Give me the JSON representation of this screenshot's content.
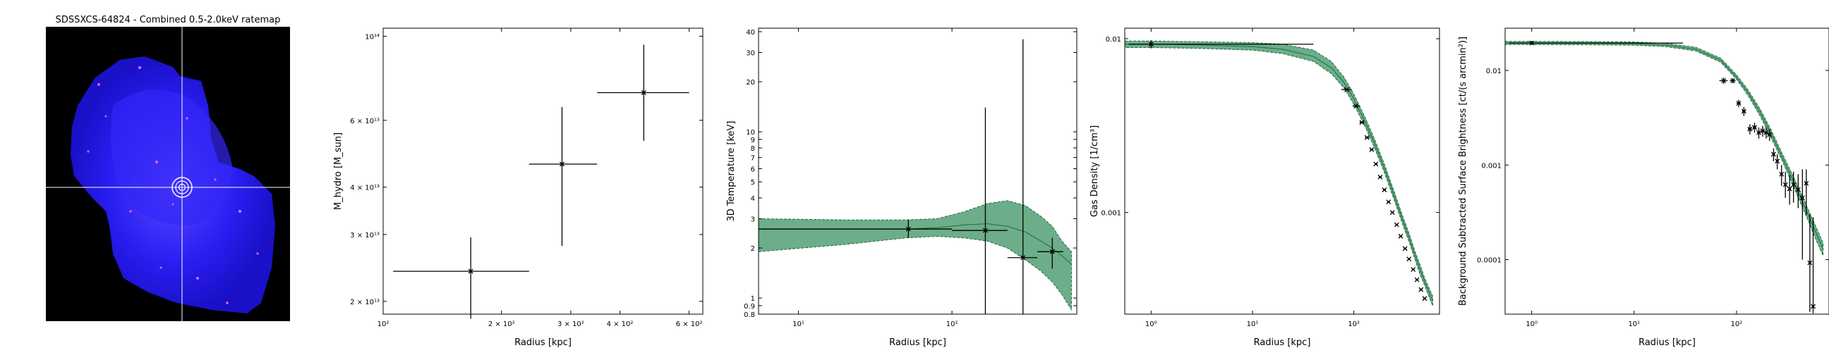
{
  "figure": {
    "image_panel": {
      "title": "SDSSXCS-64824 - Combined 0.5-2.0keV ratemap",
      "colors": {
        "background": "#000000",
        "emission": "#2a1ef2",
        "hot": "#c860f0",
        "crosshair": "#ffffff"
      }
    },
    "colors": {
      "band_fill": "#2e8b57",
      "band_edge": "#1f6b3f",
      "errorbar": "#000000"
    }
  },
  "chart_data": [
    {
      "type": "scatter",
      "title": "",
      "xlabel": "Radius [kpc]",
      "ylabel": "M_hydro [M_sun]",
      "xscale": "log",
      "yscale": "log",
      "xlim": [
        100,
        650
      ],
      "ylim": [
        18500000000000.0,
        105000000000000.0
      ],
      "xticks": [
        {
          "v": 100,
          "label": "10²"
        },
        {
          "v": 200,
          "label": "2 × 10²"
        },
        {
          "v": 300,
          "label": "3 × 10²"
        },
        {
          "v": 400,
          "label": "4 × 10²"
        },
        {
          "v": 600,
          "label": "6 × 10²"
        }
      ],
      "yticks": [
        {
          "v": 20000000000000.0,
          "label": "2 × 10¹³"
        },
        {
          "v": 30000000000000.0,
          "label": "3 × 10¹³"
        },
        {
          "v": 40000000000000.0,
          "label": "4 × 10¹³"
        },
        {
          "v": 60000000000000.0,
          "label": "6 × 10¹³"
        },
        {
          "v": 100000000000000.0,
          "label": "10¹⁴"
        }
      ],
      "points": [
        {
          "x": 167,
          "xlo": 106,
          "xhi": 235,
          "y": 24000000000000.0,
          "ylo": 18000000000000.0,
          "yhi": 29500000000000.0
        },
        {
          "x": 285,
          "xlo": 235,
          "xhi": 350,
          "y": 46000000000000.0,
          "ylo": 28000000000000.0,
          "yhi": 65000000000000.0
        },
        {
          "x": 460,
          "xlo": 350,
          "xhi": 600,
          "y": 71000000000000.0,
          "ylo": 53000000000000.0,
          "yhi": 95000000000000.0
        }
      ]
    },
    {
      "type": "line",
      "title": "",
      "xlabel": "Radius [kpc]",
      "ylabel": "3D Temperature [keV]",
      "xscale": "log",
      "yscale": "log",
      "xlim": [
        5.5,
        650
      ],
      "ylim": [
        0.8,
        42
      ],
      "xticks": [
        {
          "v": 10,
          "label": "10¹"
        },
        {
          "v": 100,
          "label": "10²"
        }
      ],
      "yticks": [
        {
          "v": 0.8,
          "label": "0.8"
        },
        {
          "v": 0.9,
          "label": "0.9"
        },
        {
          "v": 1,
          "label": "1"
        },
        {
          "v": 2,
          "label": "2"
        },
        {
          "v": 3,
          "label": "3"
        },
        {
          "v": 4,
          "label": "4"
        },
        {
          "v": 5,
          "label": "5"
        },
        {
          "v": 6,
          "label": "6"
        },
        {
          "v": 7,
          "label": "7"
        },
        {
          "v": 8,
          "label": "8"
        },
        {
          "v": 9,
          "label": "9"
        },
        {
          "v": 10,
          "label": "10"
        },
        {
          "v": 20,
          "label": "20"
        },
        {
          "v": 30,
          "label": "30"
        },
        {
          "v": 40,
          "label": "40"
        }
      ],
      "model_band": {
        "x": [
          5.5,
          20,
          50,
          80,
          120,
          170,
          230,
          300,
          380,
          450,
          520,
          600
        ],
        "y": [
          2.6,
          2.6,
          2.6,
          2.65,
          2.75,
          2.8,
          2.7,
          2.5,
          2.2,
          2.0,
          1.8,
          1.6
        ],
        "ylo": [
          1.9,
          2.1,
          2.3,
          2.35,
          2.3,
          2.2,
          2.0,
          1.7,
          1.45,
          1.25,
          1.05,
          0.85
        ],
        "yhi": [
          3.0,
          2.95,
          2.95,
          3.0,
          3.3,
          3.7,
          3.85,
          3.6,
          3.1,
          2.7,
          2.2,
          1.9
        ]
      },
      "points": [
        {
          "x": 52,
          "xlo": 5.5,
          "xhi": 100,
          "y": 2.6,
          "ylo": 2.3,
          "yhi": 2.95
        },
        {
          "x": 165,
          "xlo": 100,
          "xhi": 230,
          "y": 2.55,
          "ylo": 0.8,
          "yhi": 14
        },
        {
          "x": 290,
          "xlo": 230,
          "xhi": 360,
          "y": 1.75,
          "ylo": 0.8,
          "yhi": 36
        },
        {
          "x": 450,
          "xlo": 360,
          "xhi": 530,
          "y": 1.9,
          "ylo": 1.5,
          "yhi": 2.3
        }
      ]
    },
    {
      "type": "line",
      "title": "",
      "xlabel": "Radius [kpc]",
      "ylabel": "Gas Density [1/cm³]",
      "xscale": "log",
      "yscale": "log",
      "xlim": [
        0.55,
        700
      ],
      "ylim": [
        0.00026,
        0.0115
      ],
      "xticks": [
        {
          "v": 1,
          "label": "10⁰"
        },
        {
          "v": 10,
          "label": "10¹"
        },
        {
          "v": 100,
          "label": "10²"
        }
      ],
      "yticks": [
        {
          "v": 0.001,
          "label": "0.001"
        },
        {
          "v": 0.01,
          "label": "0.01"
        }
      ],
      "model_band": {
        "x": [
          0.55,
          1,
          3,
          10,
          20,
          40,
          60,
          80,
          100,
          130,
          160,
          200,
          250,
          300,
          350,
          400,
          450,
          500,
          560,
          600
        ],
        "y": [
          0.0093,
          0.0093,
          0.0092,
          0.009,
          0.0087,
          0.0079,
          0.0068,
          0.0056,
          0.0045,
          0.0033,
          0.0025,
          0.0018,
          0.00125,
          0.00092,
          0.00072,
          0.00057,
          0.00047,
          0.0004,
          0.00034,
          0.00031
        ],
        "ylo": [
          0.0089,
          0.0089,
          0.0088,
          0.0086,
          0.0082,
          0.0074,
          0.0063,
          0.0052,
          0.0042,
          0.0031,
          0.00235,
          0.0017,
          0.00118,
          0.00087,
          0.00068,
          0.00054,
          0.00044,
          0.00038,
          0.00032,
          0.00029
        ],
        "yhi": [
          0.0097,
          0.0097,
          0.0096,
          0.0095,
          0.0093,
          0.0086,
          0.0074,
          0.006,
          0.0048,
          0.0035,
          0.00265,
          0.0019,
          0.00132,
          0.00097,
          0.00076,
          0.0006,
          0.0005,
          0.00042,
          0.00036,
          0.00033
        ]
      },
      "points": [
        {
          "x": 1.0,
          "xlo": 0.6,
          "xhi": 40,
          "y": 0.0093,
          "ylo": 0.0088,
          "yhi": 0.0098
        },
        {
          "x": 85,
          "xlo": 75,
          "xhi": 95,
          "y": 0.0051
        },
        {
          "x": 105,
          "xlo": 97,
          "xhi": 115,
          "y": 0.0041
        },
        {
          "x": 120,
          "xlo": 114,
          "xhi": 127,
          "y": 0.0033
        },
        {
          "x": 135,
          "xlo": 129,
          "xhi": 142,
          "y": 0.0027
        },
        {
          "x": 150,
          "xlo": 145,
          "xhi": 156,
          "y": 0.0023
        },
        {
          "x": 165,
          "xlo": 160,
          "xhi": 171,
          "y": 0.0019
        },
        {
          "x": 182,
          "xlo": 176,
          "xhi": 188,
          "y": 0.0016
        },
        {
          "x": 200,
          "xlo": 194,
          "xhi": 207,
          "y": 0.00135
        },
        {
          "x": 220,
          "xlo": 213,
          "xhi": 227,
          "y": 0.00115
        },
        {
          "x": 240,
          "xlo": 233,
          "xhi": 248,
          "y": 0.001
        },
        {
          "x": 265,
          "xlo": 257,
          "xhi": 273,
          "y": 0.00085
        },
        {
          "x": 290,
          "xlo": 282,
          "xhi": 298,
          "y": 0.00073
        },
        {
          "x": 320,
          "xlo": 311,
          "xhi": 329,
          "y": 0.00062
        },
        {
          "x": 350,
          "xlo": 340,
          "xhi": 360,
          "y": 0.00054
        },
        {
          "x": 385,
          "xlo": 374,
          "xhi": 396,
          "y": 0.00047
        },
        {
          "x": 420,
          "xlo": 408,
          "xhi": 432,
          "y": 0.00041
        },
        {
          "x": 460,
          "xlo": 447,
          "xhi": 473,
          "y": 0.00036
        },
        {
          "x": 500,
          "xlo": 486,
          "xhi": 514,
          "y": 0.00032
        }
      ]
    },
    {
      "type": "line",
      "title": "",
      "xlabel": "Radius [kpc]",
      "ylabel": "Background Subtracted Surface Brightness [ct/(s arcmin²)]",
      "xscale": "log",
      "yscale": "log",
      "xlim": [
        0.55,
        800
      ],
      "ylim": [
        2.65e-05,
        0.028
      ],
      "xticks": [
        {
          "v": 1,
          "label": "10⁰"
        },
        {
          "v": 10,
          "label": "10¹"
        },
        {
          "v": 100,
          "label": "10²"
        }
      ],
      "yticks": [
        {
          "v": 0.0001,
          "label": "0.0001"
        },
        {
          "v": 0.001,
          "label": "0.001"
        },
        {
          "v": 0.01,
          "label": "0.01"
        }
      ],
      "model_band": {
        "x": [
          0.55,
          1,
          3,
          10,
          20,
          40,
          70,
          100,
          130,
          170,
          220,
          280,
          350,
          420,
          500,
          600,
          700
        ],
        "y": [
          0.0195,
          0.0195,
          0.0194,
          0.0192,
          0.0186,
          0.0168,
          0.0128,
          0.0085,
          0.0058,
          0.0036,
          0.0021,
          0.0012,
          0.00072,
          0.00046,
          0.0003,
          0.00019,
          0.00013
        ],
        "ylo": [
          0.0188,
          0.0188,
          0.0187,
          0.0185,
          0.0179,
          0.0161,
          0.0122,
          0.0081,
          0.0054,
          0.0033,
          0.0019,
          0.0011,
          0.00064,
          0.0004,
          0.00026,
          0.00016,
          0.00011
        ],
        "yhi": [
          0.0203,
          0.0203,
          0.0202,
          0.02,
          0.0194,
          0.0176,
          0.0135,
          0.009,
          0.0062,
          0.0039,
          0.0023,
          0.00132,
          0.0008,
          0.00052,
          0.00034,
          0.00022,
          0.00015
        ]
      },
      "points": [
        {
          "x": 1.0,
          "xlo": 0.6,
          "xhi": 30,
          "y": 0.0195,
          "ylo": 0.0188,
          "yhi": 0.0203
        },
        {
          "x": 75,
          "xlo": 68,
          "xhi": 82,
          "y": 0.0078,
          "ylo": 0.0072,
          "yhi": 0.0084
        },
        {
          "x": 92,
          "xlo": 86,
          "xhi": 98,
          "y": 0.0078,
          "ylo": 0.0073,
          "yhi": 0.0083
        },
        {
          "x": 105,
          "xlo": 100,
          "xhi": 110,
          "y": 0.0045,
          "ylo": 0.0041,
          "yhi": 0.0049
        },
        {
          "x": 118,
          "xlo": 113,
          "xhi": 123,
          "y": 0.0037,
          "ylo": 0.0033,
          "yhi": 0.0041
        },
        {
          "x": 135,
          "xlo": 129,
          "xhi": 141,
          "y": 0.0024,
          "ylo": 0.0021,
          "yhi": 0.0027
        },
        {
          "x": 150,
          "xlo": 144,
          "xhi": 156,
          "y": 0.0025,
          "ylo": 0.0022,
          "yhi": 0.0028
        },
        {
          "x": 165,
          "xlo": 159,
          "xhi": 171,
          "y": 0.0022,
          "ylo": 0.0019,
          "yhi": 0.0025
        },
        {
          "x": 180,
          "xlo": 174,
          "xhi": 186,
          "y": 0.0023,
          "ylo": 0.002,
          "yhi": 0.0026
        },
        {
          "x": 195,
          "xlo": 189,
          "xhi": 201,
          "y": 0.0022,
          "ylo": 0.0019,
          "yhi": 0.0025
        },
        {
          "x": 210,
          "xlo": 204,
          "xhi": 216,
          "y": 0.0021,
          "ylo": 0.0018,
          "yhi": 0.0024
        },
        {
          "x": 230,
          "xlo": 223,
          "xhi": 237,
          "y": 0.0013,
          "ylo": 0.0011,
          "yhi": 0.0015
        },
        {
          "x": 250,
          "xlo": 243,
          "xhi": 257,
          "y": 0.0011,
          "ylo": 0.0009,
          "yhi": 0.0013
        },
        {
          "x": 275,
          "xlo": 267,
          "xhi": 283,
          "y": 0.0008,
          "ylo": 0.0006,
          "yhi": 0.001
        },
        {
          "x": 300,
          "xlo": 292,
          "xhi": 308,
          "y": 0.00062,
          "ylo": 0.00045,
          "yhi": 0.00085
        },
        {
          "x": 330,
          "xlo": 321,
          "xhi": 339,
          "y": 0.00056,
          "ylo": 0.00038,
          "yhi": 0.00078
        },
        {
          "x": 360,
          "xlo": 350,
          "xhi": 370,
          "y": 0.00062,
          "ylo": 0.0004,
          "yhi": 0.00085
        },
        {
          "x": 400,
          "xlo": 388,
          "xhi": 412,
          "y": 0.00055,
          "ylo": 0.00035,
          "yhi": 0.0008
        },
        {
          "x": 440,
          "xlo": 428,
          "xhi": 452,
          "y": 0.00045,
          "ylo": 0.0001,
          "yhi": 0.0009
        },
        {
          "x": 480,
          "xlo": 466,
          "xhi": 494,
          "y": 0.00064,
          "ylo": 0.0003,
          "yhi": 0.0009
        },
        {
          "x": 520,
          "xlo": 505,
          "xhi": 535,
          "y": 9.26e-05,
          "ylo": 2.8e-05,
          "yhi": 0.0003
        },
        {
          "x": 560,
          "xlo": 545,
          "xhi": 575,
          "y": 3.2e-05,
          "ylo": 2.7e-05,
          "yhi": 0.00028
        }
      ]
    }
  ]
}
